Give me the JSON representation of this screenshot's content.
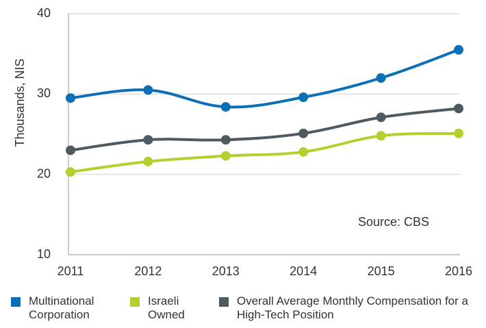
{
  "chart_data": {
    "type": "line",
    "y_label": "Thousands, NIS",
    "annotation": "Source: CBS",
    "categories": [
      "2011",
      "2012",
      "2013",
      "2014",
      "2015",
      "2016"
    ],
    "series": [
      {
        "name": "Multinational Corporation",
        "color": "#0a6fb5",
        "values": [
          29.5,
          30.5,
          28.4,
          29.6,
          32.0,
          35.5
        ]
      },
      {
        "name": "Israeli Owned",
        "color": "#b5cf2f",
        "values": [
          20.3,
          21.6,
          22.3,
          22.8,
          24.8,
          25.1
        ]
      },
      {
        "name": "Overall Average Monthly Compensation for a High-Tech Position",
        "color": "#4d5a61",
        "values": [
          23.0,
          24.3,
          24.3,
          25.1,
          27.1,
          28.2
        ]
      }
    ],
    "ylim": [
      10,
      40
    ],
    "yticks": [
      10,
      20,
      30,
      40
    ],
    "grid": true
  }
}
